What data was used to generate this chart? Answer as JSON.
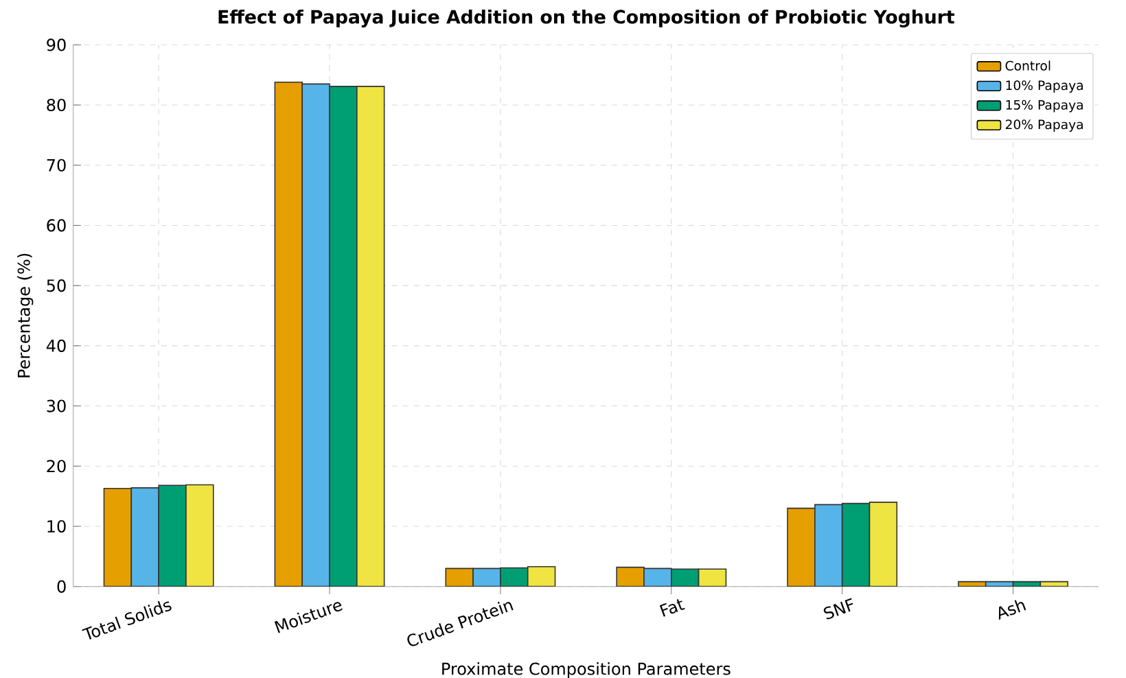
{
  "chart_data": {
    "type": "bar",
    "title": "Effect of Papaya Juice Addition on the Composition of Probiotic Yoghurt",
    "xlabel": "Proximate Composition Parameters",
    "ylabel": "Percentage (%)",
    "categories": [
      "Total Solids",
      "Moisture",
      "Crude Protein",
      "Fat",
      "SNF",
      "Ash"
    ],
    "series": [
      {
        "name": "Control",
        "color": "#e69f00",
        "values": [
          16.3,
          83.8,
          3.0,
          3.2,
          13.0,
          0.8
        ]
      },
      {
        "name": "10% Papaya",
        "color": "#56b4e9",
        "values": [
          16.4,
          83.5,
          3.0,
          3.0,
          13.6,
          0.8
        ]
      },
      {
        "name": "15% Papaya",
        "color": "#009e73",
        "values": [
          16.8,
          83.1,
          3.1,
          2.9,
          13.8,
          0.8
        ]
      },
      {
        "name": "20% Papaya",
        "color": "#f0e442",
        "values": [
          16.9,
          83.1,
          3.3,
          2.9,
          14.0,
          0.8
        ]
      }
    ],
    "ylim": [
      0,
      90
    ],
    "yticks": [
      0,
      10,
      20,
      30,
      40,
      50,
      60,
      70,
      80,
      90
    ],
    "grid": true,
    "legend": "top right"
  }
}
